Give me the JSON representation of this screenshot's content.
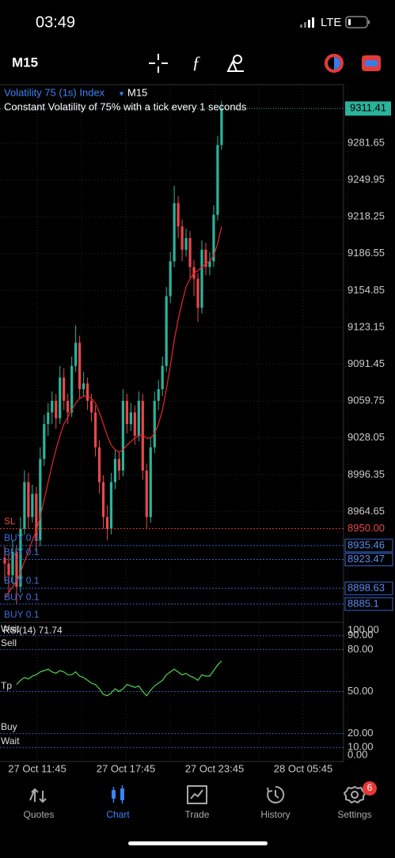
{
  "status_bar": {
    "time": "03:49",
    "network": "LTE"
  },
  "toolbar": {
    "timeframe": "M15"
  },
  "chart_data": {
    "type": "candlestick",
    "symbol": "Volatility 75 (1s) Index",
    "timeframe": "M15",
    "description": "Constant Volatility of 75% with a tick every 1 seconds",
    "up_color": "#2bb39b",
    "down_color": "#e8474b",
    "ma_color": "#e8262b",
    "candles": [
      [
        8925,
        8935,
        8905,
        8920
      ],
      [
        8920,
        8928,
        8895,
        8910
      ],
      [
        8910,
        8940,
        8902,
        8930
      ],
      [
        8930,
        8936,
        8885,
        8900
      ],
      [
        8900,
        8960,
        8895,
        8950
      ],
      [
        8950,
        9000,
        8945,
        8990
      ],
      [
        8990,
        8998,
        8950,
        8960
      ],
      [
        8960,
        8988,
        8955,
        8980
      ],
      [
        8980,
        8986,
        8930,
        8940
      ],
      [
        8940,
        9020,
        8935,
        9010
      ],
      [
        9010,
        9048,
        9004,
        9040
      ],
      [
        9040,
        9058,
        9030,
        9050
      ],
      [
        9050,
        9068,
        9040,
        9060
      ],
      [
        9060,
        9066,
        9036,
        9045
      ],
      [
        9045,
        9090,
        9040,
        9080
      ],
      [
        9080,
        9088,
        9052,
        9060
      ],
      [
        9060,
        9066,
        9040,
        9050
      ],
      [
        9050,
        9098,
        9046,
        9090
      ],
      [
        9090,
        9125,
        9085,
        9110
      ],
      [
        9110,
        9116,
        9062,
        9070
      ],
      [
        9070,
        9085,
        9064,
        9075
      ],
      [
        9075,
        9080,
        9052,
        9060
      ],
      [
        9060,
        9066,
        9042,
        9050
      ],
      [
        9050,
        9056,
        9012,
        9020
      ],
      [
        9020,
        9026,
        8980,
        8990
      ],
      [
        8990,
        8996,
        8950,
        8960
      ],
      [
        8960,
        8970,
        8940,
        8950
      ],
      [
        8950,
        8998,
        8945,
        8990
      ],
      [
        8990,
        9018,
        8984,
        9010
      ],
      [
        9010,
        9016,
        8992,
        9000
      ],
      [
        9000,
        9070,
        8995,
        9060
      ],
      [
        9060,
        9066,
        9032,
        9040
      ],
      [
        9040,
        9058,
        9034,
        9050
      ],
      [
        9050,
        9056,
        9022,
        9030
      ],
      [
        9030,
        9068,
        9025,
        9060
      ],
      [
        9060,
        9066,
        8992,
        9000
      ],
      [
        9000,
        9006,
        8950,
        8960
      ],
      [
        8960,
        9028,
        8955,
        9020
      ],
      [
        9020,
        9068,
        9015,
        9060
      ],
      [
        9060,
        9078,
        9052,
        9070
      ],
      [
        9070,
        9098,
        9064,
        9090
      ],
      [
        9090,
        9158,
        9085,
        9150
      ],
      [
        9150,
        9188,
        9144,
        9180
      ],
      [
        9180,
        9245,
        9175,
        9230
      ],
      [
        9230,
        9236,
        9200,
        9210
      ],
      [
        9210,
        9216,
        9180,
        9190
      ],
      [
        9190,
        9208,
        9184,
        9200
      ],
      [
        9200,
        9206,
        9165,
        9175
      ],
      [
        9175,
        9181,
        9150,
        9165
      ],
      [
        9165,
        9170,
        9128,
        9140
      ],
      [
        9140,
        9198,
        9135,
        9190
      ],
      [
        9190,
        9196,
        9168,
        9175
      ],
      [
        9175,
        9188,
        9168,
        9180
      ],
      [
        9180,
        9228,
        9175,
        9220
      ],
      [
        9220,
        9288,
        9215,
        9280
      ],
      [
        9280,
        9318,
        9276,
        9311.41
      ]
    ],
    "ma": [
      8890,
      8895,
      8900,
      8905,
      8912,
      8922,
      8930,
      8940,
      8948,
      8960,
      8975,
      8990,
      9005,
      9018,
      9030,
      9040,
      9046,
      9052,
      9058,
      9062,
      9064,
      9064,
      9062,
      9058,
      9050,
      9040,
      9030,
      9022,
      9018,
      9016,
      9018,
      9022,
      9025,
      9028,
      9030,
      9030,
      9028,
      9028,
      9032,
      9040,
      9052,
      9070,
      9090,
      9112,
      9130,
      9145,
      9158,
      9165,
      9170,
      9172,
      9175,
      9178,
      9180,
      9185,
      9195,
      9210
    ],
    "ylim": [
      8869.4,
      9332
    ],
    "yticks": [
      9281.65,
      9249.95,
      9218.25,
      9186.55,
      9154.85,
      9123.15,
      9091.45,
      9059.75,
      9028.05,
      8996.35,
      8964.65
    ],
    "current_price": 9311.41,
    "stop_loss": {
      "value": 8950,
      "label": "8950.00"
    },
    "order_levels": [
      8935.46,
      8923.47,
      8898.63,
      8885.1
    ],
    "order_tags": [
      "SL",
      "BUY 0.1",
      "BUY 0.1",
      "BUY 0.1",
      "BUY 0.1",
      "BUY 0.1"
    ],
    "time_labels": [
      "27 Oct 11:45",
      "27 Oct 17:45",
      "27 Oct 23:45",
      "28 Oct 05:45"
    ],
    "rsi": {
      "label": "RSI(14) 71.74",
      "color": "#4cd84c",
      "values": [
        null,
        null,
        null,
        55,
        58,
        60,
        59,
        61,
        62,
        64,
        65,
        66,
        64,
        63,
        65,
        64,
        62,
        62,
        64,
        61,
        60,
        58,
        56,
        55,
        52,
        48,
        47,
        49,
        52,
        50,
        52,
        55,
        54,
        53,
        54,
        50,
        47,
        51,
        54,
        56,
        58,
        62,
        64,
        66,
        64,
        62,
        63,
        61,
        60,
        58,
        62,
        61,
        61,
        65,
        69,
        71.74
      ],
      "ylim": [
        0,
        100
      ],
      "yticks": [
        {
          "value": 100,
          "label": "100.00"
        },
        {
          "value": 90,
          "label": "90.00"
        },
        {
          "value": 80,
          "label": "80.00"
        },
        {
          "value": 50,
          "label": "50.00"
        },
        {
          "value": 20,
          "label": "20.00"
        },
        {
          "value": 10,
          "label": "10.00"
        },
        {
          "value": 0,
          "label": "0.00"
        }
      ],
      "level_tags": [
        "Wait",
        "Sell",
        "Tp",
        "Buy",
        "Wait"
      ]
    }
  },
  "nav": [
    {
      "label": "Quotes"
    },
    {
      "label": "Chart"
    },
    {
      "label": "Trade"
    },
    {
      "label": "History"
    },
    {
      "label": "Settings"
    }
  ],
  "settings_badge": 6
}
